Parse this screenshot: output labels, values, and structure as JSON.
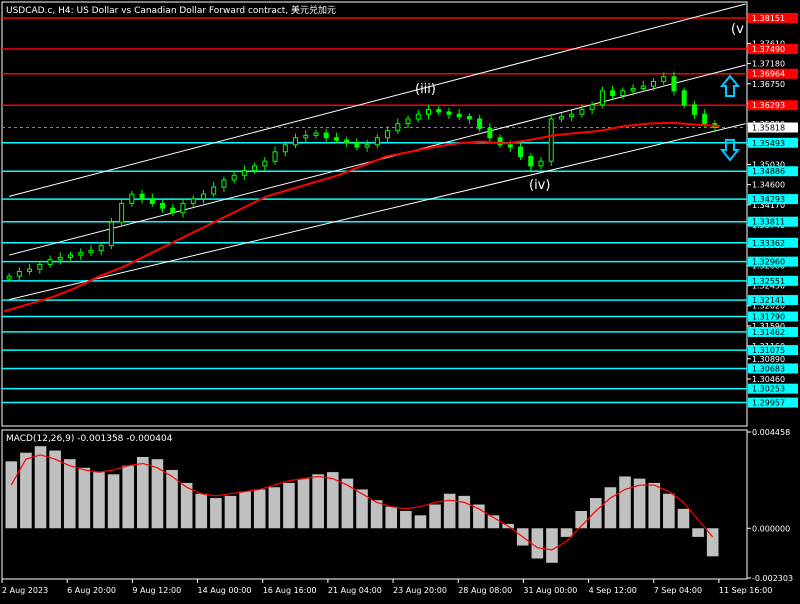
{
  "header": {
    "title": "USDCAD.c, H4:  US Dollar vs Canadian Dollar Forward contract, 美元兑加元"
  },
  "colors": {
    "background": "#000000",
    "frame": "#ffffff",
    "candle": "#00ff00",
    "moving_average": "#ff0000",
    "resistance_line": "#ff0000",
    "support_line": "#00ffff",
    "channel": "#ffffff",
    "macd_histogram": "#c0c0c0",
    "macd_signal": "#ff0000",
    "arrow": "#00c8ff",
    "label_bg_red": "#ff0000",
    "label_bg_cyan": "#00ffff"
  },
  "chart_data": {
    "type": "candlestick",
    "symbol": "USDCAD.c",
    "timeframe": "H4",
    "ylim": [
      1.295,
      1.3845
    ],
    "x_ticks": [
      "2 Aug 2023",
      "6 Aug 20:00",
      "9 Aug 12:00",
      "14 Aug 00:00",
      "16 Aug 16:00",
      "21 Aug 04:00",
      "23 Aug 20:00",
      "28 Aug 08:00",
      "31 Aug 00:00",
      "4 Sep 12:00",
      "7 Sep 04:00",
      "11 Sep 16:00"
    ],
    "y_ticks": [
      "1.37610",
      "1.37180",
      "1.36750",
      "1.36320",
      "1.35890",
      "1.35460",
      "1.35030",
      "1.34600",
      "1.34170",
      "1.33740",
      "1.33310",
      "1.32880",
      "1.32450",
      "1.32020",
      "1.31590",
      "1.31160",
      "1.30890",
      "1.30460"
    ],
    "price_close_approx": [
      1.3265,
      1.3275,
      1.328,
      1.329,
      1.33,
      1.3305,
      1.331,
      1.3315,
      1.332,
      1.333,
      1.338,
      1.342,
      1.344,
      1.343,
      1.342,
      1.341,
      1.34,
      1.342,
      1.343,
      1.344,
      1.3455,
      1.347,
      1.348,
      1.349,
      1.35,
      1.351,
      1.353,
      1.3545,
      1.356,
      1.3565,
      1.357,
      1.356,
      1.3555,
      1.355,
      1.354,
      1.3545,
      1.356,
      1.3575,
      1.359,
      1.36,
      1.361,
      1.362,
      1.3615,
      1.361,
      1.3605,
      1.36,
      1.358,
      1.356,
      1.3545,
      1.354,
      1.352,
      1.35,
      1.351,
      1.36,
      1.3605,
      1.361,
      1.362,
      1.363,
      1.366,
      1.365,
      1.366,
      1.3665,
      1.367,
      1.368,
      1.369,
      1.366,
      1.363,
      1.361,
      1.359,
      1.3582
    ],
    "moving_average_approx": [
      1.319,
      1.3205,
      1.322,
      1.324,
      1.3265,
      1.3285,
      1.331,
      1.3335,
      1.336,
      1.3385,
      1.341,
      1.3435,
      1.345,
      1.3465,
      1.348,
      1.35,
      1.352,
      1.353,
      1.354,
      1.3548,
      1.3552,
      1.3548,
      1.3555,
      1.3565,
      1.357,
      1.3575,
      1.3585,
      1.359,
      1.3592,
      1.3588,
      1.3585
    ],
    "levels": [
      {
        "price": 1.38151,
        "label": "1.38151",
        "kind": "red"
      },
      {
        "price": 1.3749,
        "label": "1.37490",
        "kind": "red"
      },
      {
        "price": 1.36964,
        "label": "1.36964",
        "kind": "red"
      },
      {
        "price": 1.36293,
        "label": "1.36293",
        "kind": "red"
      },
      {
        "price": 1.35493,
        "label": "1.35493",
        "kind": "cyan"
      },
      {
        "price": 1.34886,
        "label": "1.34886",
        "kind": "cyan"
      },
      {
        "price": 1.34293,
        "label": "1.34293",
        "kind": "cyan"
      },
      {
        "price": 1.33811,
        "label": "1.33811",
        "kind": "cyan"
      },
      {
        "price": 1.33362,
        "label": "1.33362",
        "kind": "cyan"
      },
      {
        "price": 1.3296,
        "label": "1.32960",
        "kind": "cyan"
      },
      {
        "price": 1.32551,
        "label": "1.32551",
        "kind": "cyan"
      },
      {
        "price": 1.32141,
        "label": "1.32141",
        "kind": "cyan"
      },
      {
        "price": 1.3179,
        "label": "1.31790",
        "kind": "cyan"
      },
      {
        "price": 1.31462,
        "label": "1.31462",
        "kind": "cyan"
      },
      {
        "price": 1.31075,
        "label": "1.31075",
        "kind": "cyan"
      },
      {
        "price": 1.30683,
        "label": "1.30683",
        "kind": "cyan"
      },
      {
        "price": 1.30253,
        "label": "1.30253",
        "kind": "cyan"
      },
      {
        "price": 1.29957,
        "label": "1.29957",
        "kind": "cyan"
      }
    ],
    "current_price": {
      "price": 1.35818,
      "label": "1.35818"
    },
    "wave_labels": [
      "(iii)",
      "(iv)",
      "(v"
    ],
    "macd": {
      "label": "MACD(12,26,9) -0.001358 -0.000404",
      "ylim": [
        -0.002303,
        0.004458
      ],
      "y_ticks": [
        "0.004458",
        "0.000000",
        "-0.002303"
      ],
      "histogram_approx": [
        0.0031,
        0.0035,
        0.0038,
        0.0036,
        0.0032,
        0.0028,
        0.0026,
        0.0025,
        0.0029,
        0.0033,
        0.0032,
        0.0027,
        0.0021,
        0.0016,
        0.0014,
        0.0015,
        0.0017,
        0.0018,
        0.0019,
        0.0021,
        0.0023,
        0.0025,
        0.0026,
        0.0023,
        0.0018,
        0.0013,
        0.001,
        0.0008,
        0.0006,
        0.0011,
        0.0016,
        0.0015,
        0.0011,
        0.0006,
        0.0002,
        -0.0008,
        -0.0014,
        -0.0016,
        -0.0004,
        0.0008,
        0.0014,
        0.0019,
        0.0024,
        0.0023,
        0.0021,
        0.0016,
        0.0009,
        -0.0004,
        -0.0013
      ],
      "signal_approx": [
        0.002,
        0.0032,
        0.0034,
        0.0032,
        0.0029,
        0.0027,
        0.0026,
        0.0027,
        0.0029,
        0.003,
        0.0028,
        0.0024,
        0.0019,
        0.0016,
        0.0015,
        0.0016,
        0.0017,
        0.0018,
        0.002,
        0.0022,
        0.0023,
        0.0024,
        0.0023,
        0.002,
        0.0016,
        0.0012,
        0.001,
        0.0009,
        0.001,
        0.0012,
        0.0013,
        0.0012,
        0.0009,
        0.0005,
        0.0001,
        -0.0004,
        -0.0009,
        -0.001,
        -0.0006,
        0.0001,
        0.0008,
        0.0014,
        0.0018,
        0.002,
        0.002,
        0.0017,
        0.0012,
        0.0004,
        -0.0004
      ]
    }
  }
}
